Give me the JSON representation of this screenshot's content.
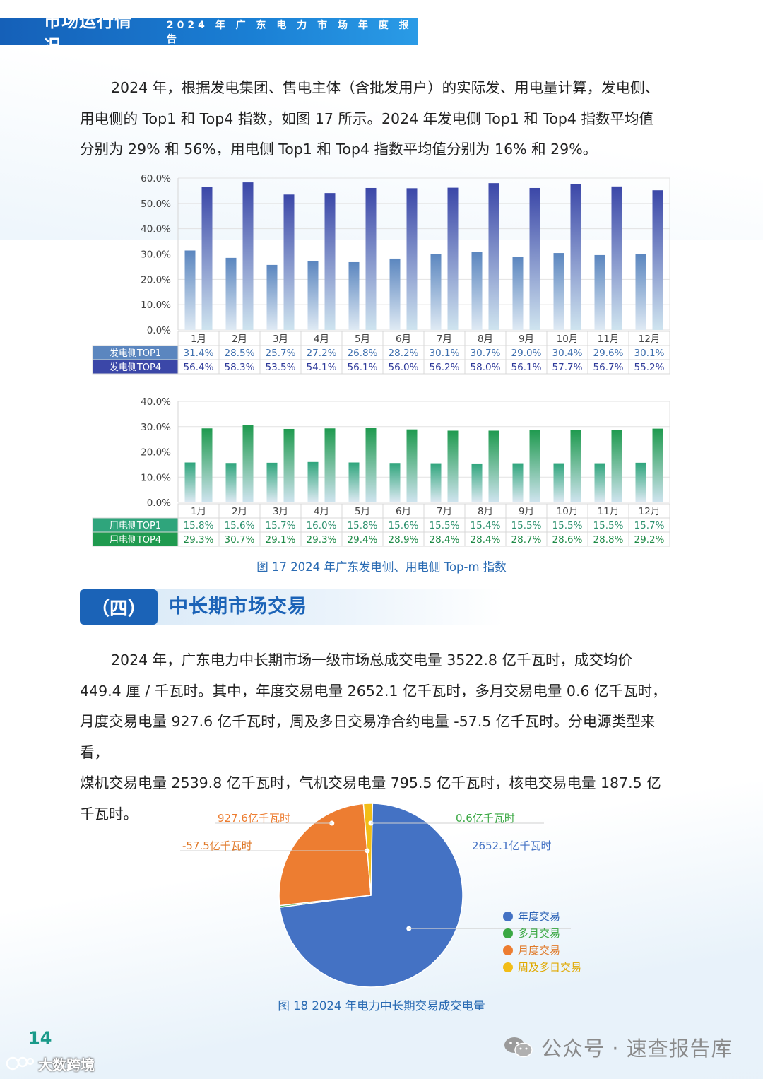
{
  "header": {
    "title": "市场运行情况",
    "subtitle": "2024 年 广 东 电 力 市 场 年 度 报 告"
  },
  "intro": {
    "line1": "2024 年，根据发电集团、售电主体（含批发用户）的实际发、用电量计算，发电侧、",
    "line2": "用电侧的 Top1 和 Top4 指数，如图 17 所示。2024 年发电侧 Top1 和 Top4 指数平均值",
    "line3": "分别为 29% 和 56%，用电侧 Top1 和 Top4 指数平均值分别为 16% 和 29%。"
  },
  "chart_data": [
    {
      "type": "bar",
      "categories": [
        "1月",
        "2月",
        "3月",
        "4月",
        "5月",
        "6月",
        "7月",
        "8月",
        "9月",
        "10月",
        "11月",
        "12月"
      ],
      "series": [
        {
          "name": "发电侧TOP1",
          "values": [
            31.4,
            28.5,
            25.7,
            27.2,
            26.8,
            28.2,
            30.1,
            30.7,
            29.0,
            30.4,
            29.6,
            30.1
          ],
          "labels": [
            "31.4%",
            "28.5%",
            "25.7%",
            "27.2%",
            "26.8%",
            "28.2%",
            "30.1%",
            "30.7%",
            "29.0%",
            "30.4%",
            "29.6%",
            "30.1%"
          ]
        },
        {
          "name": "发电侧TOP4",
          "values": [
            56.4,
            58.3,
            53.5,
            54.1,
            56.1,
            56.0,
            56.2,
            58.0,
            56.1,
            57.7,
            56.7,
            55.2
          ],
          "labels": [
            "56.4%",
            "58.3%",
            "53.5%",
            "54.1%",
            "56.1%",
            "56.0%",
            "56.2%",
            "58.0%",
            "56.1%",
            "57.7%",
            "56.7%",
            "55.2%"
          ]
        }
      ],
      "yticks": [
        "0.0%",
        "10.0%",
        "20.0%",
        "30.0%",
        "40.0%",
        "50.0%",
        "60.0%"
      ],
      "ylim": [
        0,
        60
      ],
      "colors": [
        "#5b86bf",
        "#3b47a8"
      ],
      "grid": true
    },
    {
      "type": "bar",
      "categories": [
        "1月",
        "2月",
        "3月",
        "4月",
        "5月",
        "6月",
        "7月",
        "8月",
        "9月",
        "10月",
        "11月",
        "12月"
      ],
      "series": [
        {
          "name": "用电侧TOP1",
          "values": [
            15.8,
            15.6,
            15.7,
            16.0,
            15.8,
            15.6,
            15.5,
            15.4,
            15.5,
            15.5,
            15.5,
            15.7
          ],
          "labels": [
            "15.8%",
            "15.6%",
            "15.7%",
            "16.0%",
            "15.8%",
            "15.6%",
            "15.5%",
            "15.4%",
            "15.5%",
            "15.5%",
            "15.5%",
            "15.7%"
          ]
        },
        {
          "name": "用电侧TOP4",
          "values": [
            29.3,
            30.7,
            29.1,
            29.3,
            29.4,
            28.9,
            28.4,
            28.4,
            28.7,
            28.6,
            28.8,
            29.2
          ],
          "labels": [
            "29.3%",
            "30.7%",
            "29.1%",
            "29.3%",
            "29.4%",
            "28.9%",
            "28.4%",
            "28.4%",
            "28.7%",
            "28.6%",
            "28.8%",
            "29.2%"
          ]
        }
      ],
      "yticks": [
        "0.0%",
        "10.0%",
        "20.0%",
        "30.0%",
        "40.0%"
      ],
      "ylim": [
        0,
        40
      ],
      "colors": [
        "#2fa57c",
        "#1f9a4f"
      ],
      "grid": true
    },
    {
      "type": "pie",
      "categories": [
        "年度交易",
        "多月交易",
        "月度交易",
        "周及多日交易"
      ],
      "values": [
        2652.1,
        0.6,
        927.6,
        57.5
      ],
      "labels": [
        "2652.1亿千瓦时",
        "0.6亿千瓦时",
        "927.6亿千瓦时",
        "-57.5亿千瓦时"
      ],
      "colors": [
        "#4472c4",
        "#3aa843",
        "#ed7d31",
        "#f2bd17"
      ],
      "legend": "right"
    }
  ],
  "fig17_caption": "图 17  2024 年广东发电侧、用电侧 Top-m 指数",
  "section": {
    "number": "（四）",
    "title": "中长期市场交易"
  },
  "body": {
    "line1": "2024 年，广东电力中长期市场一级市场总成交电量 3522.8 亿千瓦时，成交均价",
    "line2": "449.4 厘 / 千瓦时。其中，年度交易电量 2652.1 亿千瓦时，多月交易电量 0.6 亿千瓦时，",
    "line3": "月度交易电量 927.6 亿千瓦时，周及多日交易净合约电量 -57.5 亿千瓦时。分电源类型来看，",
    "line4": "煤机交易电量 2539.8 亿千瓦时，气机交易电量 795.5 亿千瓦时，核电交易电量 187.5 亿",
    "line5": "千瓦时。"
  },
  "fig18_caption": "图 18  2024 年电力中长期交易成交电量",
  "footer": {
    "page_number": "14",
    "watermark_right": "公众号 · 速查报告库",
    "watermark_left": "大数跨境"
  }
}
